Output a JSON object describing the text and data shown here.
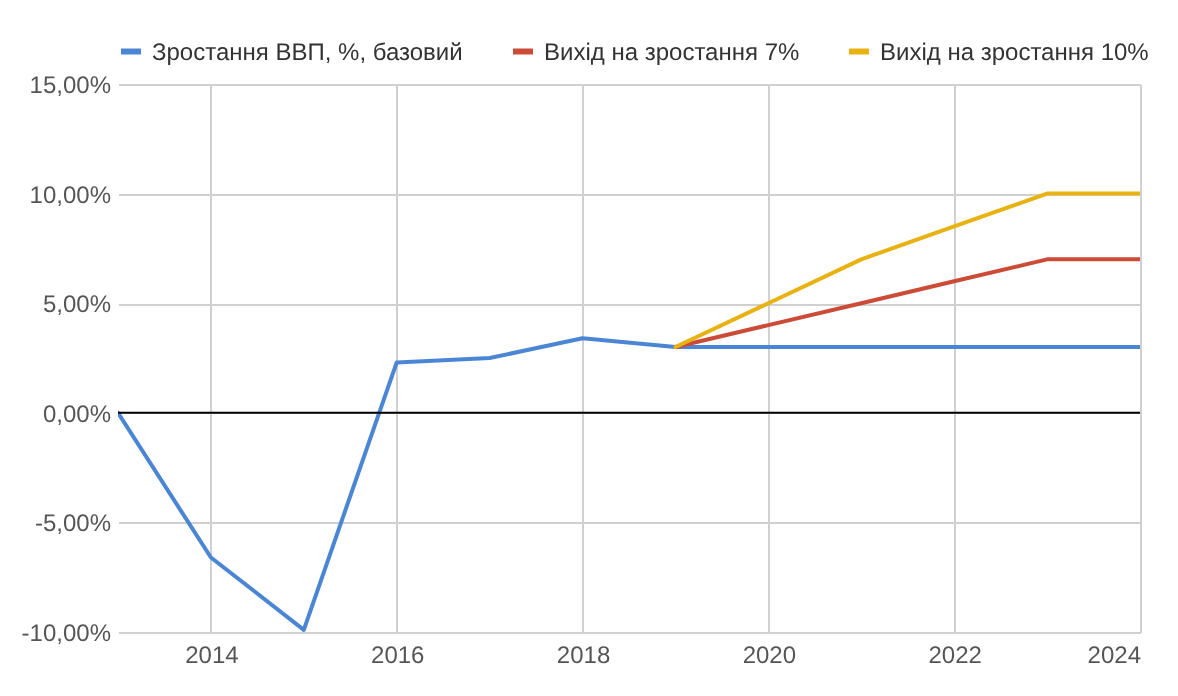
{
  "chart_data": {
    "type": "line",
    "x": [
      2013,
      2014,
      2015,
      2016,
      2017,
      2018,
      2019,
      2020,
      2021,
      2022,
      2023,
      2024
    ],
    "series": [
      {
        "name": "Зростання ВВП, %, базовий",
        "color": "#4a86d4",
        "values": [
          0,
          -6.6,
          -9.9,
          2.3,
          2.5,
          3.4,
          3.0,
          3.0,
          3.0,
          3.0,
          3.0,
          3.0
        ]
      },
      {
        "name": "Вихід на зростання 7%",
        "color": "#cc4b37",
        "values": [
          null,
          null,
          null,
          null,
          null,
          null,
          3.0,
          4.0,
          5.0,
          6.0,
          7.0,
          7.0
        ]
      },
      {
        "name": "Вихід на зростання 10%",
        "color": "#e8b212",
        "values": [
          null,
          null,
          null,
          null,
          null,
          null,
          3.0,
          5.0,
          7.0,
          8.5,
          10.0,
          10.0
        ]
      }
    ],
    "xlim": [
      2013,
      2024
    ],
    "xticks": [
      2014,
      2016,
      2018,
      2020,
      2022,
      2024
    ],
    "ylim": [
      -10,
      15
    ],
    "yticks": [
      {
        "value": -10,
        "label": "-10,00%"
      },
      {
        "value": -5,
        "label": "-5,00%"
      },
      {
        "value": 0,
        "label": "0,00%"
      },
      {
        "value": 5,
        "label": "5,00%"
      },
      {
        "value": 10,
        "label": "10,00%"
      },
      {
        "value": 15,
        "label": "15,00%"
      }
    ],
    "ref_lines": [
      {
        "axis": "y",
        "value": 0,
        "color": "#000000"
      }
    ],
    "grid": true,
    "legend": "top",
    "marker": "none",
    "line_style": "solid"
  }
}
